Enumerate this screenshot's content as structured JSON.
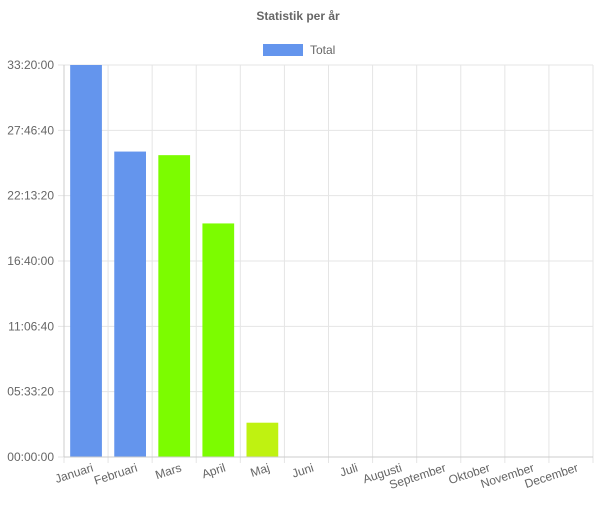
{
  "chart_data": {
    "type": "bar",
    "title": "Statistik per år",
    "legend": {
      "position": "top",
      "entries": [
        {
          "label": "Total",
          "color": "#6495ED"
        }
      ]
    },
    "categories": [
      "Januari",
      "Februari",
      "Mars",
      "April",
      "Maj",
      "Juni",
      "Juli",
      "Augusti",
      "September",
      "Oktober",
      "November",
      "December"
    ],
    "series": [
      {
        "name": "Total",
        "values_seconds": [
          120000,
          93500,
          92400,
          71500,
          10500,
          0,
          0,
          0,
          0,
          0,
          0,
          0
        ],
        "bar_colors": [
          "#6495ED",
          "#6495ED",
          "#7CFC00",
          "#7CFC00",
          "#BFF211",
          null,
          null,
          null,
          null,
          null,
          null,
          null
        ]
      }
    ],
    "y_axis": {
      "min_seconds": 0,
      "max_seconds": 120000,
      "tick_step_seconds": 20000,
      "tick_labels": [
        "00:00:00",
        "05:33:20",
        "11:06:40",
        "16:40:00",
        "22:13:20",
        "27:46:40",
        "33:20:00"
      ]
    },
    "grid": true,
    "colors": {
      "grid": "#e5e5e5",
      "axis": "#cccccc",
      "text": "#666666"
    }
  }
}
